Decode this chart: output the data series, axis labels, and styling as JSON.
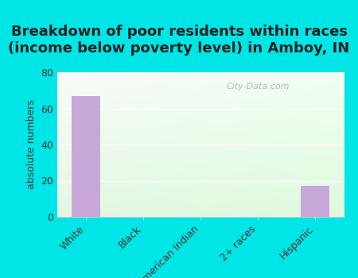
{
  "title": "Breakdown of poor residents within races\n(income below poverty level) in Amboy, IN",
  "categories": [
    "White",
    "Black",
    "American Indian",
    "2+ races",
    "Hispanic"
  ],
  "values": [
    67,
    0,
    0,
    0,
    17
  ],
  "bar_color": "#c8a8d8",
  "ylabel": "absolute numbers",
  "ylim": [
    0,
    80
  ],
  "yticks": [
    0,
    20,
    40,
    60,
    80
  ],
  "background_color": "#00e5e5",
  "title_fontsize": 13,
  "axis_label_fontsize": 9,
  "tick_fontsize": 9,
  "watermark": "City-Data.com",
  "watermark_fontsize": 8,
  "grid_color": "#ffffff",
  "spine_color": "#cccccc"
}
